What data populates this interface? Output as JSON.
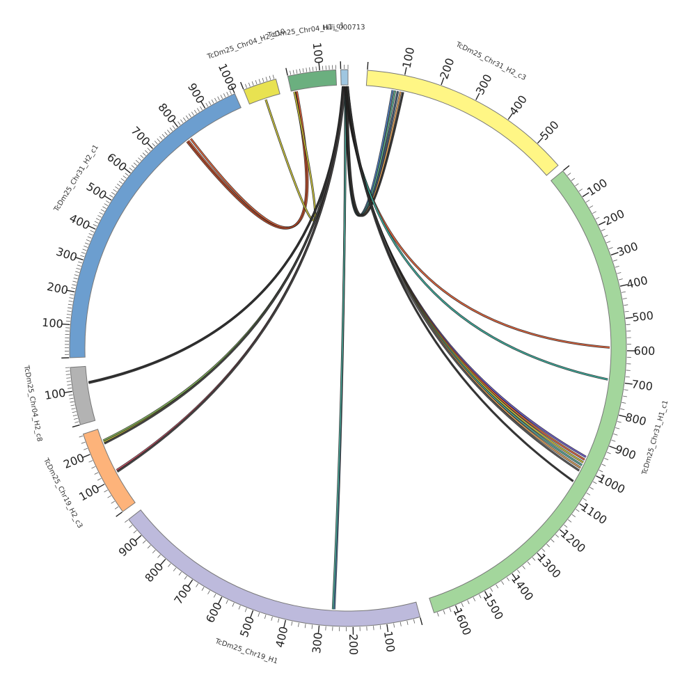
{
  "chart_data": {
    "type": "chord",
    "title": "",
    "grid": false,
    "segments": [
      {
        "name": "TcDm25_Chr31_H2_c3",
        "length": 580,
        "color": "#FFF685",
        "start_angle": 4,
        "end_angle": 49,
        "tick_step": 100,
        "label_every": 100
      },
      {
        "name": "TcDm25_Chr31_H1_c1",
        "length": 1670,
        "color": "#A3D69C",
        "start_angle": 50.5,
        "end_angle": 162,
        "tick_step": 20,
        "label_every": 100
      },
      {
        "name": "TcDm25_Chr19_H1",
        "length": 960,
        "color": "#BDBADC",
        "start_angle": 165,
        "end_angle": 232,
        "tick_step": 20,
        "label_every": 100
      },
      {
        "name": "TcDm25_Chr19_H2_c3",
        "length": 265,
        "color": "#FDB37A",
        "start_angle": 234,
        "end_angle": 252,
        "tick_step": 20,
        "label_every": 100
      },
      {
        "name": "TcDm25_Chr04_H2_c8",
        "length": 170,
        "color": "#B3B3B3",
        "start_angle": 254,
        "end_angle": 266,
        "tick_step": 10,
        "label_every": 100
      },
      {
        "name": "TcDm25_Chr31_H2_c1",
        "length": 1000,
        "color": "#6C9ECF",
        "start_angle": 268,
        "end_angle": 336,
        "tick_step": 10,
        "label_every": 100
      },
      {
        "name": "TcDm25_Chr04_H2_c10",
        "length": 95,
        "color": "#E8E251",
        "start_angle": 338,
        "end_angle": 345,
        "tick_step": 10,
        "label_every": 100
      },
      {
        "name": "TcDm25_Chr04_H1_c1",
        "length": 150,
        "color": "#6BAF7F",
        "start_angle": 347.5,
        "end_angle": 357.5,
        "tick_step": 10,
        "label_every": 100
      },
      {
        "name": "HiFi_000713",
        "length": 20,
        "color": "#9FC6E0",
        "start_angle": 358.5,
        "end_angle": 360,
        "tick_step": 10,
        "label_every": 1000
      }
    ],
    "links": [
      {
        "from": [
          "TcDm25_Chr31_H2_c1",
          800
        ],
        "to": [
          "TcDm25_Chr04_H1_c1",
          15
        ],
        "color": "#E0623A"
      },
      {
        "from": [
          "TcDm25_Chr31_H2_c1",
          810
        ],
        "to": [
          "TcDm25_Chr04_H1_c1",
          18
        ],
        "color": "#E0623A"
      },
      {
        "from": [
          "TcDm25_Chr31_H2_c1",
          795
        ],
        "to": [
          "TcDm25_Chr04_H1_c1",
          12
        ],
        "color": "#B84A2A"
      },
      {
        "from": [
          "TcDm25_Chr04_H2_c10",
          50
        ],
        "to": [
          "TcDm25_Chr04_H1_c1",
          10
        ],
        "color": "#C9C23A"
      },
      {
        "from": [
          "TcDm25_Chr04_H2_c8",
          120
        ],
        "to": [
          "HiFi_000713",
          5
        ],
        "color": "#5A5A5A"
      },
      {
        "from": [
          "TcDm25_Chr04_H2_c8",
          118
        ],
        "to": [
          "HiFi_000713",
          6
        ],
        "color": "#333333"
      },
      {
        "from": [
          "TcDm25_Chr19_H2_c3",
          220
        ],
        "to": [
          "HiFi_000713",
          8
        ],
        "color": "#D8D04A"
      },
      {
        "from": [
          "TcDm25_Chr19_H2_c3",
          225
        ],
        "to": [
          "HiFi_000713",
          9
        ],
        "color": "#7FAE5A"
      },
      {
        "from": [
          "TcDm25_Chr19_H2_c3",
          215
        ],
        "to": [
          "HiFi_000713",
          7
        ],
        "color": "#444444"
      },
      {
        "from": [
          "TcDm25_Chr19_H2_c3",
          120
        ],
        "to": [
          "HiFi_000713",
          10
        ],
        "color": "#D0566A"
      },
      {
        "from": [
          "TcDm25_Chr19_H2_c3",
          115
        ],
        "to": [
          "HiFi_000713",
          11
        ],
        "color": "#444444"
      },
      {
        "from": [
          "TcDm25_Chr19_H1",
          258
        ],
        "to": [
          "HiFi_000713",
          12
        ],
        "color": "#4E86B8"
      },
      {
        "from": [
          "TcDm25_Chr19_H1",
          262
        ],
        "to": [
          "HiFi_000713",
          13
        ],
        "color": "#4FAA9A"
      },
      {
        "from": [
          "TcDm25_Chr31_H2_c3",
          75
        ],
        "to": [
          "HiFi_000713",
          14
        ],
        "color": "#4E7FC0"
      },
      {
        "from": [
          "TcDm25_Chr31_H2_c3",
          82
        ],
        "to": [
          "HiFi_000713",
          15
        ],
        "color": "#5BAF8C"
      },
      {
        "from": [
          "TcDm25_Chr31_H2_c3",
          90
        ],
        "to": [
          "HiFi_000713",
          16
        ],
        "color": "#3C5A7A"
      },
      {
        "from": [
          "TcDm25_Chr31_H2_c3",
          98
        ],
        "to": [
          "HiFi_000713",
          17
        ],
        "color": "#E0A15A"
      },
      {
        "from": [
          "TcDm25_Chr31_H2_c3",
          105
        ],
        "to": [
          "HiFi_000713",
          18
        ],
        "color": "#333333"
      },
      {
        "from": [
          "TcDm25_Chr31_H1_c1",
          590
        ],
        "to": [
          "HiFi_000713",
          12
        ],
        "color": "#E0623A"
      },
      {
        "from": [
          "TcDm25_Chr31_H1_c1",
          695
        ],
        "to": [
          "HiFi_000713",
          13
        ],
        "color": "#3AAA9A"
      },
      {
        "from": [
          "TcDm25_Chr31_H1_c1",
          960
        ],
        "to": [
          "HiFi_000713",
          14
        ],
        "color": "#6C5ACD"
      },
      {
        "from": [
          "TcDm25_Chr31_H1_c1",
          970
        ],
        "to": [
          "HiFi_000713",
          15
        ],
        "color": "#E0623A"
      },
      {
        "from": [
          "TcDm25_Chr31_H1_c1",
          980
        ],
        "to": [
          "HiFi_000713",
          16
        ],
        "color": "#C9C23A"
      },
      {
        "from": [
          "TcDm25_Chr31_H1_c1",
          990
        ],
        "to": [
          "HiFi_000713",
          17
        ],
        "color": "#4FAA9A"
      },
      {
        "from": [
          "TcDm25_Chr31_H1_c1",
          1000
        ],
        "to": [
          "HiFi_000713",
          18
        ],
        "color": "#E0A15A"
      },
      {
        "from": [
          "TcDm25_Chr31_H1_c1",
          1010
        ],
        "to": [
          "HiFi_000713",
          19
        ],
        "color": "#5A5A5A"
      },
      {
        "from": [
          "TcDm25_Chr31_H1_c1",
          1050
        ],
        "to": [
          "HiFi_000713",
          19
        ],
        "color": "#333333"
      }
    ]
  }
}
